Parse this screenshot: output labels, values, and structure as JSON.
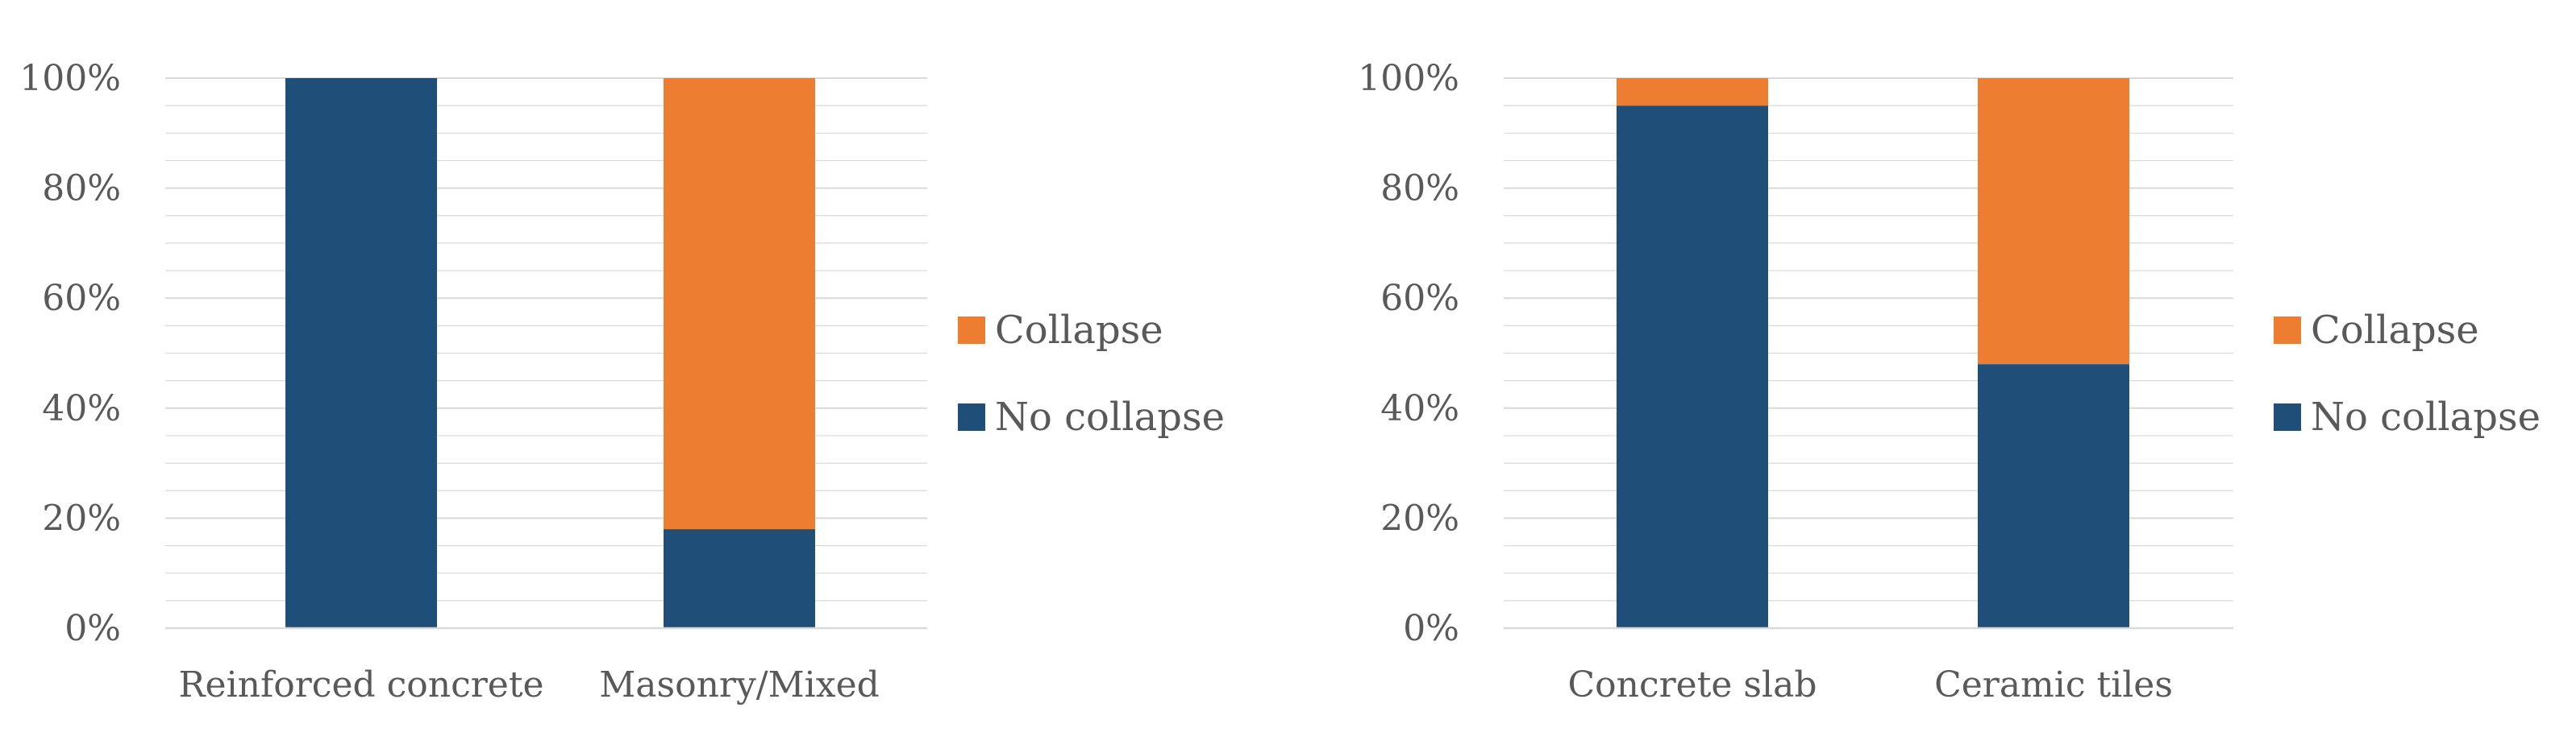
{
  "colors": {
    "collapse": "#ED7D31",
    "no_collapse": "#1F4E79",
    "gridline": "#D9D9D9",
    "axis_line": "#D9D9D9",
    "text": "#595959"
  },
  "chart_data": [
    {
      "type": "bar",
      "stacked": "percent",
      "categories": [
        "Reinforced concrete",
        "Masonry/Mixed"
      ],
      "series": [
        {
          "name": "No collapse",
          "values": [
            100,
            18
          ]
        },
        {
          "name": "Collapse",
          "values": [
            0,
            82
          ]
        }
      ],
      "yticks": [
        "0%",
        "20%",
        "40%",
        "60%",
        "80%",
        "100%"
      ],
      "ylim": [
        0,
        100
      ],
      "grid": true,
      "legend_position": "right",
      "legend": [
        "Collapse",
        "No collapse"
      ]
    },
    {
      "type": "bar",
      "stacked": "percent",
      "categories": [
        "Concrete slab",
        "Ceramic tiles"
      ],
      "series": [
        {
          "name": "No collapse",
          "values": [
            95,
            48
          ]
        },
        {
          "name": "Collapse",
          "values": [
            5,
            52
          ]
        }
      ],
      "yticks": [
        "0%",
        "20%",
        "40%",
        "60%",
        "80%",
        "100%"
      ],
      "ylim": [
        0,
        100
      ],
      "grid": true,
      "legend_position": "right",
      "legend": [
        "Collapse",
        "No collapse"
      ]
    }
  ]
}
